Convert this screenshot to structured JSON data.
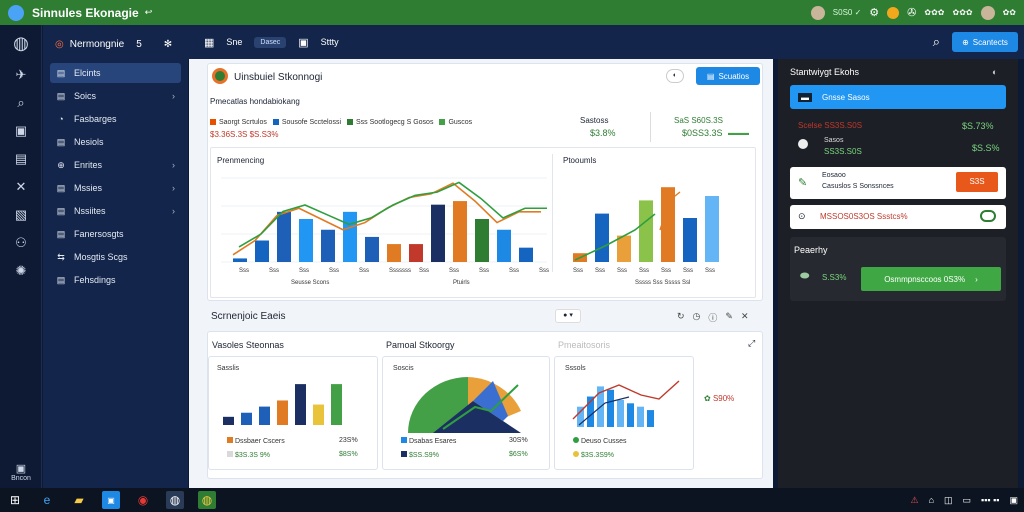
{
  "titlebar": {
    "title": "Sinnules Ekonagie",
    "arrow": "↩",
    "right_status": "S0S0 ✓",
    "r1": "✿✿✿",
    "r2": "✿✿✿",
    "r3": "✿✿"
  },
  "sidebar": {
    "header": "Nermongnie",
    "header_num": "5",
    "items": [
      {
        "label": "Elcints",
        "icon": "▤",
        "chev": ""
      },
      {
        "label": "Soics",
        "icon": "▤",
        "chev": "›"
      },
      {
        "label": "Fasbarges",
        "icon": "◔",
        "chev": ""
      },
      {
        "label": "Nesiols",
        "icon": "▤",
        "chev": ""
      },
      {
        "label": "Enrites",
        "icon": "⊕",
        "chev": "›"
      },
      {
        "label": "Mssies",
        "icon": "▤",
        "chev": "›"
      },
      {
        "label": "Nssiites",
        "icon": "▤",
        "chev": "›"
      },
      {
        "label": "Fanersosgts",
        "icon": "▤",
        "chev": ""
      },
      {
        "label": "Mosgtis Scgs",
        "icon": "⇆",
        "chev": ""
      },
      {
        "label": "Fehsdings",
        "icon": "▤",
        "chev": ""
      }
    ],
    "rail_bottom": "Bncon"
  },
  "topbar": {
    "t1": "Sne",
    "pill": "Dasec",
    "t2": "Sttty"
  },
  "topright": {
    "button": "Scantects"
  },
  "main": {
    "card_title": "Uinsbuiel Stkonnogi",
    "card_button": "Scuatios",
    "subtitle": "Pmecatlas hondabiokang",
    "legend": [
      {
        "label": "Saorgt Scrtulos",
        "color": "#e65100"
      },
      {
        "label": "Sousofe Scctelossi",
        "color": "#1565c0"
      },
      {
        "label": "Sss Sootlogecg S Gosos",
        "color": "#2e7d32"
      },
      {
        "label": "Guscos",
        "color": "#43a047"
      }
    ],
    "small_value": "$3.36S.3S $S.S3%",
    "stat1_label": "Sastoss",
    "stat1_value": "$3.8%",
    "stat2_label": "SaS S60S.3S",
    "stat2_value": "$0SS3.3S",
    "stat2_badge": "▬▬▬",
    "chart1_title": "Prenmencing",
    "chart1_xlabel": "Ptuirls",
    "chart1_xsub": "Seusse Scons",
    "chart1_ticks": [
      "Sss",
      "Sss",
      "Sss",
      "Sss",
      "Sss",
      "Sssssss",
      "Sss",
      "Sss",
      "Sss",
      "Sss",
      "Sss"
    ],
    "chart2_title": "Ptooumls",
    "chart2_ticks": [
      "Sss",
      "Sss",
      "Sss",
      "Sss",
      "Sss",
      "Sss",
      "Sss"
    ],
    "chart2_xsub": "Sssss Sss Sssss Ssl",
    "section_title": "Scrnenjoic Eaeis",
    "mini1_header": "Vasoles Steonnas",
    "mini1_sub": "Sasslis",
    "mini1_leg1": "Dssbaer Cscers",
    "mini1_val1": "23S%",
    "mini1_leg2": "$3S.3S 9%",
    "mini1_val2": "$8S%",
    "mini2_header": "Pamoal Stkoorgy",
    "mini2_sub": "Soscis",
    "mini2_leg1": "Dsabas Esares",
    "mini2_val1": "30S%",
    "mini2_leg2": "$SS.S9%",
    "mini2_val2": "$6S%",
    "mini3_header": "Pmeaitosoris",
    "mini3_sub": "Sssols",
    "mini3_leg1": "Deuso Cusses",
    "mini3_val1": "",
    "mini3_leg2": "$3S.3S9%",
    "mini3_val2": "",
    "mini3_side": "S90%"
  },
  "rpanel": {
    "title": "Stantwiygt Ekohs",
    "btn1": "Gnsse Sasos",
    "row1a": "Scelse SS3S.S0S",
    "row1a_val": "$S.73%",
    "row1b": "Sasos",
    "row1c": "SS3S.S0S",
    "row1b_val": "$S.S%",
    "card2_l1": "Eosaoo",
    "card2_l2": "Casuslos S Sonssnces",
    "card2_btn": "S3S",
    "card3_text": "MSSOS0S3OS Ssstcs%",
    "sec_title": "Peaerhy",
    "green_val": "S.S3%",
    "green_btn": "Osmmpnsccoos 0S3%"
  },
  "chart_data": [
    {
      "type": "bar",
      "title": "Prenmencing",
      "series": [
        {
          "values": [
            5,
            30,
            70,
            60,
            45,
            70,
            35,
            25,
            25,
            80,
            85,
            60,
            45,
            20
          ]
        }
      ],
      "line": [
        10,
        30,
        65,
        75,
        60,
        45,
        55,
        75,
        90,
        95,
        110,
        85,
        55,
        70,
        70
      ]
    },
    {
      "type": "bar",
      "title": "Ptooumls",
      "series": [
        {
          "values": [
            10,
            55,
            30,
            70,
            85,
            50,
            75
          ]
        }
      ]
    },
    {
      "type": "bar",
      "title": "Vasoles Steonnas",
      "series": [
        {
          "values": [
            8,
            12,
            18,
            24,
            40,
            20,
            40
          ]
        }
      ]
    },
    {
      "type": "bar",
      "title": "Pmeaitosoris",
      "series": [
        {
          "values": [
            30,
            45,
            60,
            55,
            40,
            35,
            30,
            25
          ]
        }
      ]
    }
  ],
  "colors": {
    "green": "#2e7d32",
    "blue": "#1565c0",
    "orange": "#e07b24",
    "red": "#c0392b",
    "accent": "#1e88e5"
  }
}
